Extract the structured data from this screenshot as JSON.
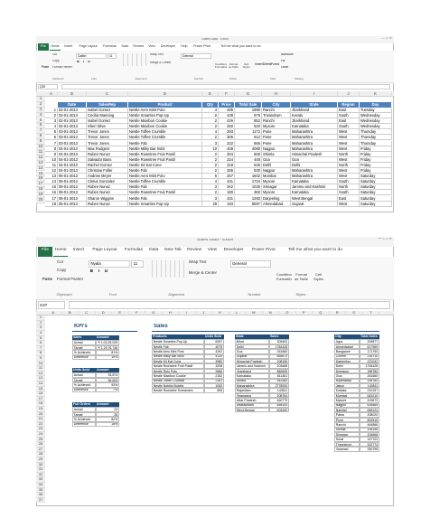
{
  "windows": [
    {
      "title": "Sales Data - Excel",
      "tabs": [
        "File",
        "Home",
        "Insert",
        "Page Layout",
        "Formulas",
        "Data",
        "Review",
        "View",
        "Developer",
        "Help",
        "Power Pivot",
        "Tell me what you want to do"
      ],
      "ribbon": {
        "paste": "Paste",
        "clipboard": [
          "Cut",
          "Copy",
          "Format Painter"
        ],
        "font": "Calibri",
        "font_size": "11",
        "font_buttons": [
          "B",
          "I",
          "U"
        ],
        "alignment": [
          "Wrap Text",
          "Merge & Center"
        ],
        "number": "General",
        "styles": [
          "Conditional Formatting",
          "Format as Table",
          "Cell Styles"
        ],
        "cells": [
          "Insert",
          "Delete",
          "Format"
        ],
        "editing": [
          "AutoSum",
          "Fill",
          "Clear"
        ]
      },
      "groups": [
        "Clipboard",
        "Font",
        "Alignment",
        "Number",
        "Styles",
        "Cells",
        "Editing"
      ],
      "name_box": "Q20",
      "columns": [
        "A",
        "B",
        "C",
        "D",
        "E",
        "F",
        "G",
        "H",
        "I",
        "J",
        "K",
        "L"
      ],
      "row_numbers": [
        1,
        2,
        3,
        4,
        5,
        6,
        7,
        8,
        9,
        10,
        11,
        12,
        13,
        14,
        15,
        16,
        17,
        18,
        19,
        20
      ],
      "table": {
        "header": [
          "Date",
          "SalesRep",
          "Product",
          "Qty",
          "Price",
          "Total Sale",
          "City",
          "State",
          "Region",
          "Day"
        ],
        "rows": [
          [
            1,
            "02-01-2013",
            "Isabel Gomez",
            "Nestle Aero Mint Poto",
            4,
            495,
            1980,
            "Ranchi",
            "Jharkhand",
            "East",
            "Tuesday"
          ],
          [
            2,
            "02-01-2013",
            "Cecilia Manning",
            "Nestle Smarties Pop-Up",
            2,
            438,
            876,
            "Trivandrum",
            "Kerala",
            "South",
            "Wednesday"
          ],
          [
            3,
            "02-01-2013",
            "Isabel Gomez",
            "Nestle Maxibon Cookie",
            2,
            426,
            852,
            "Ranchi",
            "Jharkhand",
            "East",
            "Wednesday"
          ],
          [
            4,
            "02-01-2013",
            "Sheri Silva",
            "Nestle Maxibon Cookie",
            2,
            260,
            520,
            "Mysore",
            "Karnataka",
            "South",
            "Wednesday"
          ],
          [
            5,
            "03-01-2013",
            "Trevor Jones",
            "Nestle Toffee Crumble",
            4,
            293,
            1172,
            "Pune",
            "Maharashtra",
            "West",
            "Thursday"
          ],
          [
            6,
            "03-01-2013",
            "Trevor Jones",
            "Nestle Toffee Crumble",
            2,
            306,
            612,
            "Pune",
            "Maharashtra",
            "West",
            "Thursday"
          ],
          [
            7,
            "03-01-2013",
            "Trevor Jones",
            "Nestle Fab",
            3,
            222,
            666,
            "Pune",
            "Maharashtra",
            "West",
            "Thursday"
          ],
          [
            8,
            "04-01-2013",
            "Max Rodgers",
            "Nestle Milky Bar Stick",
            10,
            408,
            4080,
            "Nagpur",
            "Maharashtra",
            "West",
            "Friday"
          ],
          [
            9,
            "04-01-2013",
            "Ruben Nunez",
            "Nestle Rowntree Fruit Pastil",
            2,
            304,
            608,
            "Shimla",
            "Himachal Pradesh",
            "North",
            "Friday"
          ],
          [
            10,
            "04-01-2013",
            "Salvador Bass",
            "Nestle Rowntree Fruit Pastil",
            2,
            224,
            448,
            "Goa",
            "Goa",
            "West",
            "Friday"
          ],
          [
            11,
            "04-01-2013",
            "Rachel Gomez",
            "Nestle Kit Kat Cone",
            2,
            318,
            636,
            "Delhi",
            "Delhi",
            "North",
            "Friday"
          ],
          [
            12,
            "04-01-2013",
            "Christina Fuller",
            "Nestle Fab",
            2,
            265,
            530,
            "Nagpur",
            "Maharashtra",
            "West",
            "Friday"
          ],
          [
            13,
            "05-01-2013",
            "Andrew Meyer",
            "Nestle Aero Mint Poto",
            6,
            267,
            1602,
            "Mumbai",
            "Maharashtra",
            "West",
            "Saturday"
          ],
          [
            14,
            "05-01-2013",
            "Cletus Gonzalez",
            "Nestle Toffee Crumble",
            4,
            431,
            1724,
            "Mysore",
            "Karnataka",
            "South",
            "Saturday"
          ],
          [
            15,
            "05-01-2013",
            "Ruben Nunez",
            "Nestle Fab",
            3,
            342,
            1026,
            "Srinagar",
            "Jammu and Kashmir",
            "North",
            "Saturday"
          ],
          [
            16,
            "05-01-2013",
            "Ruben Nunez",
            "Nestle Rowntree Fruit Pastil",
            2,
            180,
            360,
            "Mysore",
            "Karnataka",
            "South",
            "Saturday"
          ],
          [
            17,
            "05-01-2013",
            "Sharon Wiggins",
            "Nestle Fab",
            3,
            431,
            1293,
            "Darjeeling",
            "West Bengal",
            "East",
            "Saturday"
          ],
          [
            18,
            "05-01-2013",
            "Ruben Nunez",
            "Nestle Smarties Pop-Up",
            29,
            193,
            5597,
            "Ahmedabad",
            "Gujarat",
            "West",
            "Saturday"
          ]
        ]
      }
    },
    {
      "title": "Sales Data - Excel",
      "tabs": [
        "File",
        "Home",
        "Insert",
        "Page Layout",
        "Formulas",
        "Data",
        "New Tab",
        "Review",
        "View",
        "Developer",
        "Power Pivot",
        "Tell me what you want to do"
      ],
      "ribbon": {
        "paste": "Paste",
        "clipboard": [
          "Cut",
          "Copy",
          "Format Painter"
        ],
        "font": "Nyala",
        "font_size": "11",
        "font_buttons": [
          "B",
          "I",
          "U"
        ],
        "alignment": [
          "Wrap Text",
          "Merge & Center"
        ],
        "number": "General",
        "styles": [
          "Conditional Formatting",
          "Format as Table",
          "Cell Styles"
        ]
      },
      "groups": [
        "Clipboard",
        "Font",
        "Alignment",
        "Number",
        "Styles"
      ],
      "name_box": "K37",
      "columns": [
        "A",
        "B",
        "C",
        "D",
        "E",
        "F",
        "G",
        "H",
        "I",
        "J",
        "K",
        "L",
        "M",
        "N",
        "O",
        "P",
        "Q",
        "R",
        "S",
        "T",
        "U",
        "V"
      ],
      "row_numbers": [
        1,
        2,
        3,
        4,
        5,
        6,
        7,
        8,
        9,
        10,
        11,
        12,
        13,
        14,
        15,
        16,
        17,
        18,
        19,
        20,
        21,
        22,
        23,
        24,
        25,
        26,
        27,
        28,
        29,
        30,
        31,
        32,
        33,
        34,
        35,
        36,
        37,
        38
      ],
      "dashboard": {
        "kpi_title": "KPI's",
        "sales_title": "Sales",
        "kpis": [
          {
            "header": [
              "Sales",
              "Amount"
            ],
            "rows": [
              [
                "Actual",
                "₹ 1,02,25,025"
              ],
              [
                "Target",
                "₹ 1,29,76,746"
              ],
              [
                "% Achieved",
                "81%"
              ],
              [
                "Difference",
                "19%"
              ]
            ]
          },
          {
            "header": [
              "Units Sold",
              "Amount"
            ],
            "rows": [
              [
                "Actual",
                "33,874"
              ],
              [
                "Target",
                "36,603"
              ],
              [
                "% Achieved",
                "93%"
              ],
              [
                "Difference",
                "7%"
              ]
            ]
          },
          {
            "header": [
              "Full Orders",
              "Amount"
            ],
            "rows": [
              [
                "Actual",
                "23"
              ],
              [
                "Target",
                "28"
              ],
              [
                "% Achieved",
                "82%"
              ],
              [
                "Difference",
                "18%"
              ]
            ]
          }
        ],
        "products": {
          "header": [
            "Products",
            "Units Sold"
          ],
          "rows": [
            [
              "Nestle Smarties Pop-Up",
              "5267"
            ],
            [
              "Nestle Fab",
              "4075"
            ],
            [
              "Nestle Aero Mint Poto",
              "4292"
            ],
            [
              "Nestle Milky Bar Stick",
              "4133"
            ],
            [
              "Nestle Kit Kat Cone",
              "3980"
            ],
            [
              "Nestle Rowntree Fruit Pastil",
              "3208"
            ],
            [
              "Nestle Rolo Pots",
              "2666"
            ],
            [
              "Nestle Maxibon Cookie",
              "2152"
            ],
            [
              "Nestle Toffee Crumble",
              "2161"
            ],
            [
              "Nestle Nobbly Bobbly",
              "1053"
            ],
            [
              "Nestle Rowntree Screamers",
              "806"
            ]
          ]
        },
        "states": {
          "header": [
            "State",
            "Sales"
          ],
          "rows": [
            [
              "Bihar",
              "309400"
            ],
            [
              "Delhi",
              "1784428"
            ],
            [
              "Goa",
              "261660"
            ],
            [
              "Gujarat",
              "665672"
            ],
            [
              "Himachal Pradesh",
              "208196"
            ],
            [
              "Jammu and Kashmir",
              "204668"
            ],
            [
              "Jharkhand",
              "882605"
            ],
            [
              "Karnataka",
              "811461"
            ],
            [
              "Kerala",
              "942484"
            ],
            [
              "Maharashtra",
              "2778933"
            ],
            [
              "Rajasthan",
              "143811"
            ],
            [
              "Telangana",
              "208784"
            ],
            [
              "Uttar Pradesh",
              "460779"
            ],
            [
              "Uttarakhand",
              "655104"
            ],
            [
              "West Bengal",
              "603490"
            ]
          ]
        },
        "cities": {
          "header": [
            "City",
            "Total Sales"
          ],
          "rows": [
            [
              "Agra",
              "209877"
            ],
            [
              "Ahmedabad",
              "617969"
            ],
            [
              "Bangalore",
              "171790"
            ],
            [
              "Cochin",
              "216710"
            ],
            [
              "Darjeeling",
              "221032"
            ],
            [
              "Delhi",
              "1784428"
            ],
            [
              "Durgapur",
              "186780"
            ],
            [
              "Goa",
              "261660"
            ],
            [
              "Hyderabad",
              "208784"
            ],
            [
              "Jaipur",
              "143811"
            ],
            [
              "Kolkata",
              "210157"
            ],
            [
              "Mumbai",
              "643210"
            ],
            [
              "Mysore",
              "419672"
            ],
            [
              "Nagpur",
              "616865"
            ],
            [
              "Nainital",
              "655124"
            ],
            [
              "Patna",
              "208020"
            ],
            [
              "Pune",
              "802515"
            ],
            [
              "Ranchi",
              "464866"
            ],
            [
              "Shimla",
              "208196"
            ],
            [
              "Srinagar",
              "204668"
            ],
            [
              "Surat",
              "167703"
            ],
            [
              "Trivandrum",
              "322774"
            ],
            [
              "Varanasi",
              "250798"
            ]
          ]
        }
      }
    }
  ]
}
